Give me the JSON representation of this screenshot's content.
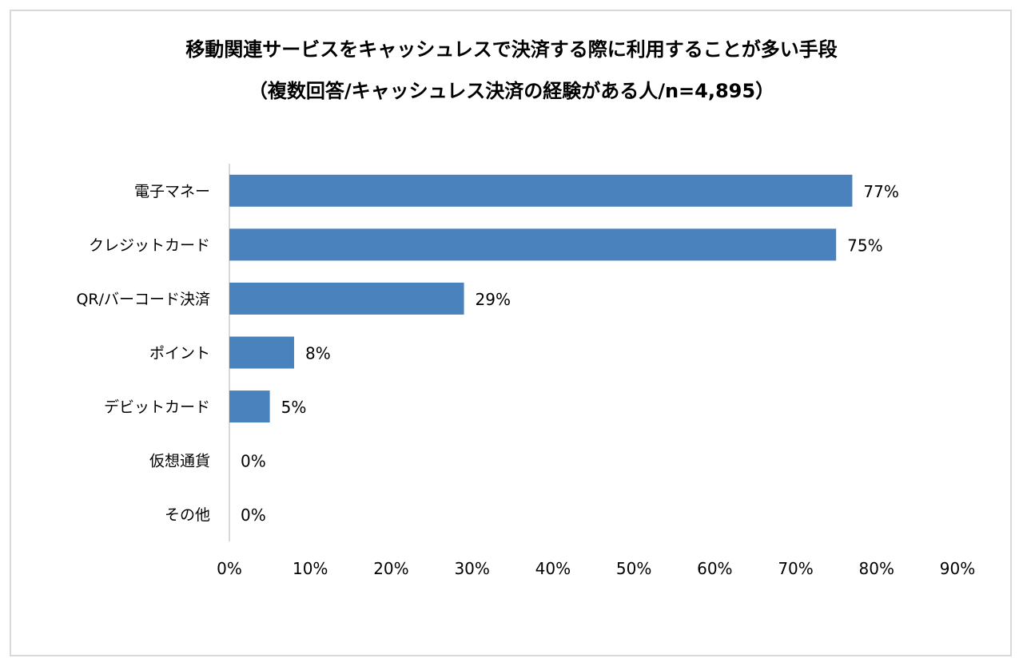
{
  "title": {
    "line1": "移動関連サービスをキャッシュレスで決済する際に利用することが多い手段",
    "line2": "（複数回答/キャッシュレス決済の経験がある人/n=4,895）"
  },
  "colors": {
    "bar": "#4a82bd",
    "axis": "#d9d9d9",
    "text": "#000000"
  },
  "chart_data": {
    "type": "bar",
    "orientation": "horizontal",
    "title": "移動関連サービスをキャッシュレスで決済する際に利用することが多い手段（複数回答/キャッシュレス決済の経験がある人/n=4,895）",
    "categories": [
      "電子マネー",
      "クレジットカード",
      "QR/バーコード決済",
      "ポイント",
      "デビットカード",
      "仮想通貨",
      "その他"
    ],
    "values": [
      77,
      75,
      29,
      8,
      5,
      0,
      0
    ],
    "value_labels": [
      "77%",
      "75%",
      "29%",
      "8%",
      "5%",
      "0%",
      "0%"
    ],
    "xlim": [
      0,
      90
    ],
    "x_ticks": [
      "0%",
      "10%",
      "20%",
      "30%",
      "40%",
      "50%",
      "60%",
      "70%",
      "80%",
      "90%"
    ],
    "grid": false,
    "legend": "none"
  }
}
